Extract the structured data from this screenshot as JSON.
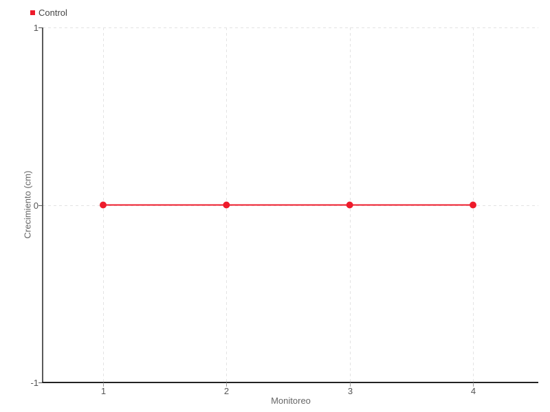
{
  "chart_data": {
    "type": "line",
    "title": "",
    "xlabel": "Monitoreo",
    "ylabel": "Crecimiento (cm)",
    "x_ticks": [
      1,
      2,
      3,
      4
    ],
    "y_ticks": [
      1,
      0,
      -1
    ],
    "ylim": [
      -1,
      1
    ],
    "grid": true,
    "grid_style": "dashed",
    "legend_position": "top-left",
    "series": [
      {
        "name": "Control",
        "color": "#ee1b2b",
        "marker": "circle",
        "x": [
          1,
          2,
          3,
          4
        ],
        "values": [
          0,
          0,
          0,
          0
        ]
      }
    ],
    "colors": {
      "background": "#ffffff",
      "grid": "#e2e2e2",
      "axis": "#222222",
      "tick_label": "#555555",
      "x_tick_mark": "#999999",
      "axis_title": "#666666",
      "legend_text": "#444444"
    }
  }
}
